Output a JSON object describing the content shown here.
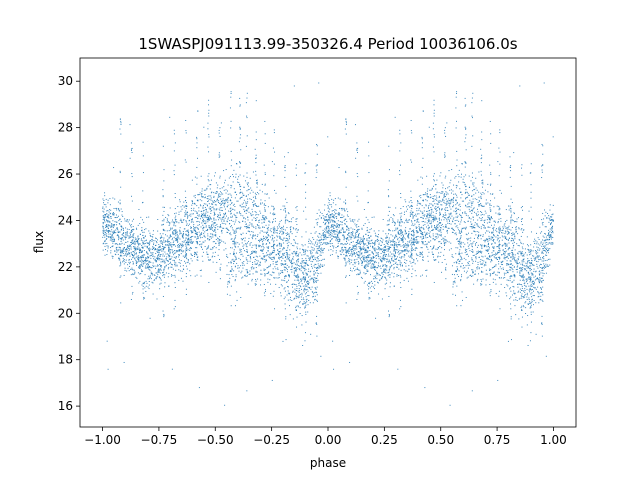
{
  "chart_data": {
    "type": "scatter",
    "title": "1SWASPJ091113.99-350326.4 Period 10036106.0s",
    "xlabel": "phase",
    "ylabel": "flux",
    "xlim": [
      -1.1,
      1.1
    ],
    "ylim": [
      15.1,
      31.0
    ],
    "xticks": [
      -1.0,
      -0.75,
      -0.5,
      -0.25,
      0.0,
      0.25,
      0.5,
      0.75,
      1.0
    ],
    "xtick_labels": [
      "−1.00",
      "−0.75",
      "−0.50",
      "−0.25",
      "0.00",
      "0.25",
      "0.50",
      "0.75",
      "1.00"
    ],
    "yticks": [
      16,
      18,
      20,
      22,
      24,
      26,
      28,
      30
    ],
    "ytick_labels": [
      "16",
      "18",
      "20",
      "22",
      "24",
      "26",
      "28",
      "30"
    ],
    "grid": false,
    "legend": "none",
    "marker_color": "#1f77b4",
    "profile": {
      "phase": [
        0.0,
        0.05,
        0.1,
        0.15,
        0.2,
        0.25,
        0.3,
        0.35,
        0.4,
        0.45,
        0.5,
        0.55,
        0.6,
        0.65,
        0.7,
        0.75,
        0.8,
        0.85,
        0.9,
        0.95,
        1.0
      ],
      "flux_mean": [
        24.0,
        23.6,
        23.0,
        22.6,
        22.3,
        22.4,
        22.8,
        23.2,
        23.6,
        24.0,
        24.0,
        24.4,
        24.5,
        24.3,
        23.8,
        23.0,
        22.4,
        21.8,
        21.5,
        22.2,
        24.0
      ],
      "flux_spread": [
        1.0,
        1.1,
        1.2,
        1.3,
        1.3,
        1.2,
        1.3,
        1.4,
        1.4,
        1.5,
        1.6,
        1.6,
        1.7,
        1.7,
        1.8,
        1.8,
        1.7,
        1.6,
        1.5,
        1.4,
        1.0
      ]
    },
    "secondary_branch": {
      "phase": [
        0.55,
        0.6,
        0.65,
        0.7,
        0.75,
        0.8,
        0.85
      ],
      "flux": [
        21.8,
        22.0,
        22.3,
        22.7,
        23.0,
        23.2,
        23.3
      ]
    },
    "spike_phases": [
      0.08,
      0.13,
      0.18,
      0.27,
      0.32,
      0.37,
      0.42,
      0.47,
      0.52,
      0.57,
      0.61,
      0.64,
      0.68,
      0.72,
      0.76,
      0.81,
      0.86,
      0.9,
      0.95
    ]
  }
}
